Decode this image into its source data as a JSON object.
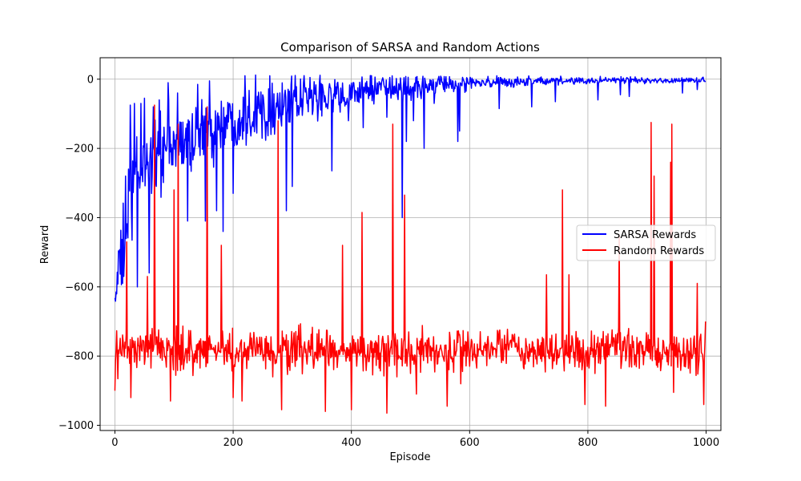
{
  "chart_data": {
    "type": "line",
    "title": "Comparison of SARSA and Random Actions",
    "xlabel": "Episode",
    "ylabel": "Reward",
    "xlim": [
      -25,
      1025
    ],
    "ylim": [
      -1015,
      62
    ],
    "xticks": [
      0,
      200,
      400,
      600,
      800,
      1000
    ],
    "yticks": [
      -1000,
      -800,
      -600,
      -400,
      -200,
      0
    ],
    "grid": true,
    "legend_position": "center-right",
    "episodes": 1000,
    "series": [
      {
        "name": "SARSA Rewards",
        "color": "#0000ff",
        "x": [
          0,
          5,
          10,
          20,
          30,
          40,
          50,
          60,
          70,
          80,
          90,
          100,
          120,
          140,
          160,
          180,
          200,
          220,
          240,
          260,
          280,
          300,
          320,
          340,
          360,
          380,
          400,
          420,
          440,
          460,
          480,
          500,
          520,
          540,
          560,
          580,
          600,
          620,
          640,
          660,
          680,
          700,
          720,
          740,
          760,
          780,
          800,
          820,
          840,
          860,
          880,
          900,
          920,
          940,
          960,
          980,
          1000
        ],
        "values": [
          -640,
          -560,
          -550,
          -420,
          -320,
          -280,
          -240,
          -220,
          -215,
          -210,
          -205,
          -200,
          -180,
          -160,
          -145,
          -130,
          -115,
          -100,
          -92,
          -85,
          -78,
          -70,
          -63,
          -55,
          -50,
          -45,
          -40,
          -36,
          -32,
          -29,
          -26,
          -23,
          -20,
          -18,
          -16,
          -14,
          -12,
          -11,
          -10,
          -9,
          -8,
          -7,
          -6,
          -5,
          -5,
          -4,
          -4,
          -4,
          -3,
          -3,
          -3,
          -3,
          -3,
          -3,
          -3,
          -3,
          -3
        ],
        "noise": [
          40,
          60,
          110,
          150,
          150,
          140,
          130,
          120,
          115,
          110,
          105,
          100,
          95,
          90,
          88,
          85,
          82,
          78,
          75,
          72,
          70,
          66,
          62,
          58,
          54,
          50,
          46,
          42,
          38,
          35,
          32,
          30,
          28,
          26,
          24,
          22,
          20,
          18,
          16,
          15,
          14,
          13,
          12,
          11,
          10,
          10,
          9,
          9,
          9,
          9,
          9,
          9,
          9,
          9,
          9,
          9,
          9
        ],
        "spikes": [
          {
            "x": 7,
            "y": -500
          },
          {
            "x": 18,
            "y": -280
          },
          {
            "x": 26,
            "y": -75
          },
          {
            "x": 33,
            "y": -70
          },
          {
            "x": 38,
            "y": -600
          },
          {
            "x": 44,
            "y": -70
          },
          {
            "x": 50,
            "y": -55
          },
          {
            "x": 58,
            "y": -560
          },
          {
            "x": 65,
            "y": -80
          },
          {
            "x": 75,
            "y": -60
          },
          {
            "x": 90,
            "y": -10
          },
          {
            "x": 106,
            "y": -40
          },
          {
            "x": 123,
            "y": -410
          },
          {
            "x": 140,
            "y": -15
          },
          {
            "x": 153,
            "y": -410
          },
          {
            "x": 160,
            "y": -5
          },
          {
            "x": 172,
            "y": -380
          },
          {
            "x": 183,
            "y": -440
          },
          {
            "x": 200,
            "y": -330
          },
          {
            "x": 220,
            "y": 10
          },
          {
            "x": 238,
            "y": 12
          },
          {
            "x": 262,
            "y": 10
          },
          {
            "x": 290,
            "y": -380
          },
          {
            "x": 300,
            "y": -310
          },
          {
            "x": 330,
            "y": 5
          },
          {
            "x": 367,
            "y": -265
          },
          {
            "x": 395,
            "y": -120
          },
          {
            "x": 420,
            "y": -140
          },
          {
            "x": 460,
            "y": -110
          },
          {
            "x": 486,
            "y": -400
          },
          {
            "x": 493,
            "y": -180
          },
          {
            "x": 505,
            "y": -120
          },
          {
            "x": 523,
            "y": -200
          },
          {
            "x": 540,
            "y": -70
          },
          {
            "x": 580,
            "y": -180
          },
          {
            "x": 583,
            "y": -150
          },
          {
            "x": 650,
            "y": -85
          },
          {
            "x": 705,
            "y": -80
          },
          {
            "x": 745,
            "y": -65
          },
          {
            "x": 817,
            "y": -60
          },
          {
            "x": 855,
            "y": -45
          },
          {
            "x": 870,
            "y": -50
          },
          {
            "x": 960,
            "y": -40
          },
          {
            "x": 985,
            "y": -30
          }
        ]
      },
      {
        "name": "Random Rewards",
        "color": "#ff0000",
        "x": [
          0,
          1000
        ],
        "values": [
          -785,
          -785
        ],
        "noise": [
          55,
          55
        ],
        "spikes": [
          {
            "x": 0,
            "y": -900
          },
          {
            "x": 20,
            "y": -470
          },
          {
            "x": 27,
            "y": -920
          },
          {
            "x": 55,
            "y": -570
          },
          {
            "x": 67,
            "y": -75
          },
          {
            "x": 94,
            "y": -930
          },
          {
            "x": 100,
            "y": -320
          },
          {
            "x": 107,
            "y": -130
          },
          {
            "x": 156,
            "y": -80
          },
          {
            "x": 180,
            "y": -480
          },
          {
            "x": 200,
            "y": -920
          },
          {
            "x": 215,
            "y": -930
          },
          {
            "x": 276,
            "y": -120
          },
          {
            "x": 282,
            "y": -955
          },
          {
            "x": 305,
            "y": -830
          },
          {
            "x": 356,
            "y": -960
          },
          {
            "x": 385,
            "y": -480
          },
          {
            "x": 400,
            "y": -955
          },
          {
            "x": 418,
            "y": -385
          },
          {
            "x": 460,
            "y": -965
          },
          {
            "x": 470,
            "y": -130
          },
          {
            "x": 477,
            "y": -860
          },
          {
            "x": 490,
            "y": -335
          },
          {
            "x": 510,
            "y": -910
          },
          {
            "x": 562,
            "y": -945
          },
          {
            "x": 585,
            "y": -880
          },
          {
            "x": 730,
            "y": -565
          },
          {
            "x": 757,
            "y": -320
          },
          {
            "x": 768,
            "y": -565
          },
          {
            "x": 795,
            "y": -940
          },
          {
            "x": 830,
            "y": -945
          },
          {
            "x": 853,
            "y": -450
          },
          {
            "x": 907,
            "y": -125
          },
          {
            "x": 912,
            "y": -280
          },
          {
            "x": 940,
            "y": -240
          },
          {
            "x": 942,
            "y": -130
          },
          {
            "x": 945,
            "y": -905
          },
          {
            "x": 985,
            "y": -590
          },
          {
            "x": 996,
            "y": -940
          },
          {
            "x": 999,
            "y": -700
          }
        ]
      }
    ]
  }
}
